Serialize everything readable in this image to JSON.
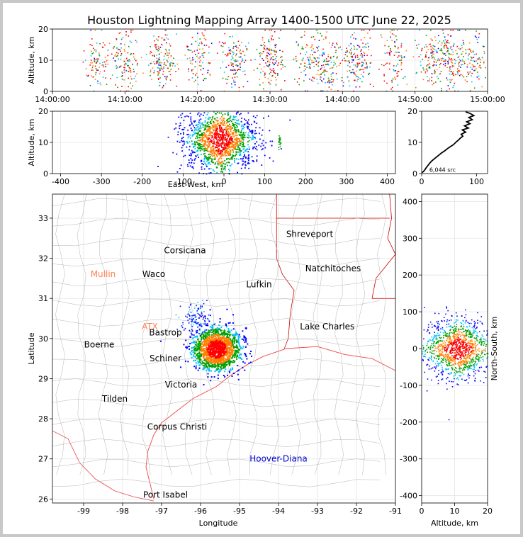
{
  "title": "Houston Lightning Mapping Array 1400-1500 UTC June 22, 2025",
  "colors": {
    "background": "#ffffff",
    "outer_border": "#c8c8c8",
    "grid": "#e4e4e4",
    "county_lines": "#b4b4b4",
    "state_lines": "#cc0000",
    "coastline": "#ee4444",
    "density": [
      "#0000ff",
      "#00bfff",
      "#00a000",
      "#ffd000",
      "#ff8000",
      "#ff0000",
      "#000000"
    ]
  },
  "chart_data": [
    {
      "id": "time_altitude",
      "type": "scatter",
      "xlabel": "",
      "ylabel": "Altitude, km",
      "xlim": [
        "14:00:00",
        "15:00:00"
      ],
      "ylim": [
        0,
        20
      ],
      "xticks": [
        "14:00:00",
        "14:10:00",
        "14:20:00",
        "14:30:00",
        "14:40:00",
        "14:50:00",
        "15:00:00"
      ],
      "yticks": [
        0,
        10,
        20
      ],
      "grid": true,
      "active_times_minutes_after_1400": [
        6,
        10,
        15,
        20,
        25,
        30,
        35,
        38,
        42,
        47,
        52,
        55,
        58
      ]
    },
    {
      "id": "east_west_altitude",
      "type": "scatter",
      "xlabel": "East-West, km",
      "ylabel": "Altitude, km",
      "xlim": [
        -420,
        420
      ],
      "ylim": [
        0,
        20
      ],
      "xticks": [
        -400,
        -300,
        -200,
        -100,
        0,
        100,
        200,
        300,
        400
      ],
      "yticks": [
        0,
        10,
        20
      ],
      "grid": true,
      "cluster": {
        "x_center_km": -10,
        "x_spread_km": 45,
        "alt_center_km": 11,
        "alt_spread_km": 5
      }
    },
    {
      "id": "altitude_histogram",
      "type": "line",
      "xlabel": "",
      "ylabel": "",
      "xlim": [
        0,
        120
      ],
      "ylim": [
        0,
        20
      ],
      "xticks": [
        0,
        100
      ],
      "yticks": [
        0,
        10,
        20
      ],
      "annotation": "6,044 src",
      "points": [
        [
          1,
          0.3
        ],
        [
          5,
          1
        ],
        [
          8,
          1.8
        ],
        [
          11,
          2.5
        ],
        [
          14,
          3.2
        ],
        [
          18,
          4
        ],
        [
          22,
          4.6
        ],
        [
          27,
          5.3
        ],
        [
          32,
          6
        ],
        [
          36,
          6.6
        ],
        [
          42,
          7.3
        ],
        [
          47,
          8
        ],
        [
          52,
          8.6
        ],
        [
          58,
          9.3
        ],
        [
          62,
          10
        ],
        [
          66,
          10.6
        ],
        [
          70,
          11.3
        ],
        [
          75,
          12
        ],
        [
          72,
          12.6
        ],
        [
          80,
          13.3
        ],
        [
          74,
          14
        ],
        [
          85,
          14.6
        ],
        [
          78,
          15.3
        ],
        [
          88,
          16
        ],
        [
          82,
          16.6
        ],
        [
          92,
          17.3
        ],
        [
          86,
          18
        ],
        [
          95,
          18.6
        ],
        [
          88,
          19.3
        ],
        [
          80,
          19.8
        ]
      ]
    },
    {
      "id": "plan_view",
      "type": "scatter",
      "xlabel": "Longitude",
      "ylabel": "Latitude",
      "xlim": [
        -99.8,
        -91
      ],
      "ylim": [
        25.9,
        33.6
      ],
      "xticks": [
        -99,
        -98,
        -97,
        -96,
        -95,
        -94,
        -93,
        -92,
        -91
      ],
      "yticks": [
        26,
        27,
        28,
        29,
        30,
        31,
        32,
        33
      ],
      "grid": true,
      "cluster": {
        "lon_center": -95.6,
        "lat_center": 29.75,
        "lon_spread": 0.3,
        "lat_spread": 0.26
      },
      "secondary_cluster": {
        "lon_center": -96.1,
        "lat_center": 30.5,
        "lon_spread": 0.2,
        "lat_spread": 0.2
      },
      "places": [
        {
          "name": "Shreveport",
          "lon": -93.2,
          "lat": 32.6,
          "color": "#000000"
        },
        {
          "name": "Corsicana",
          "lon": -96.4,
          "lat": 32.2,
          "color": "#000000"
        },
        {
          "name": "Mullin",
          "lon": -98.5,
          "lat": 31.6,
          "color": "#ff7f50"
        },
        {
          "name": "Waco",
          "lon": -97.2,
          "lat": 31.6,
          "color": "#000000"
        },
        {
          "name": "Natchitoches",
          "lon": -92.6,
          "lat": 31.75,
          "color": "#000000"
        },
        {
          "name": "Lufkin",
          "lon": -94.5,
          "lat": 31.35,
          "color": "#000000"
        },
        {
          "name": "ATX",
          "lon": -97.3,
          "lat": 30.3,
          "color": "#ff7f50"
        },
        {
          "name": "Bastrop",
          "lon": -96.9,
          "lat": 30.15,
          "color": "#000000"
        },
        {
          "name": "Lake Charles",
          "lon": -92.75,
          "lat": 30.3,
          "color": "#000000"
        },
        {
          "name": "Boerne",
          "lon": -98.6,
          "lat": 29.85,
          "color": "#000000"
        },
        {
          "name": "Schiner",
          "lon": -96.9,
          "lat": 29.5,
          "color": "#000000"
        },
        {
          "name": "Victoria",
          "lon": -96.5,
          "lat": 28.85,
          "color": "#000000"
        },
        {
          "name": "Tilden",
          "lon": -98.2,
          "lat": 28.5,
          "color": "#000000"
        },
        {
          "name": "Corpus Christi",
          "lon": -96.6,
          "lat": 27.8,
          "color": "#000000"
        },
        {
          "name": "Hoover-Diana",
          "lon": -94.0,
          "lat": 27.0,
          "color": "#0000cc"
        },
        {
          "name": "Port Isabel",
          "lon": -96.9,
          "lat": 26.1,
          "color": "#000000"
        }
      ]
    },
    {
      "id": "north_south_altitude",
      "type": "scatter",
      "xlabel": "Altitude, km",
      "ylabel": "North-South, km",
      "xlim": [
        0,
        20
      ],
      "ylim": [
        -420,
        420
      ],
      "xticks": [
        0,
        10,
        20
      ],
      "yticks": [
        -400,
        -300,
        -200,
        -100,
        0,
        100,
        200,
        300,
        400
      ],
      "grid": true,
      "cluster": {
        "alt_center_km": 11,
        "alt_spread_km": 5,
        "ns_center_km": 0,
        "ns_spread_km": 40
      }
    }
  ]
}
